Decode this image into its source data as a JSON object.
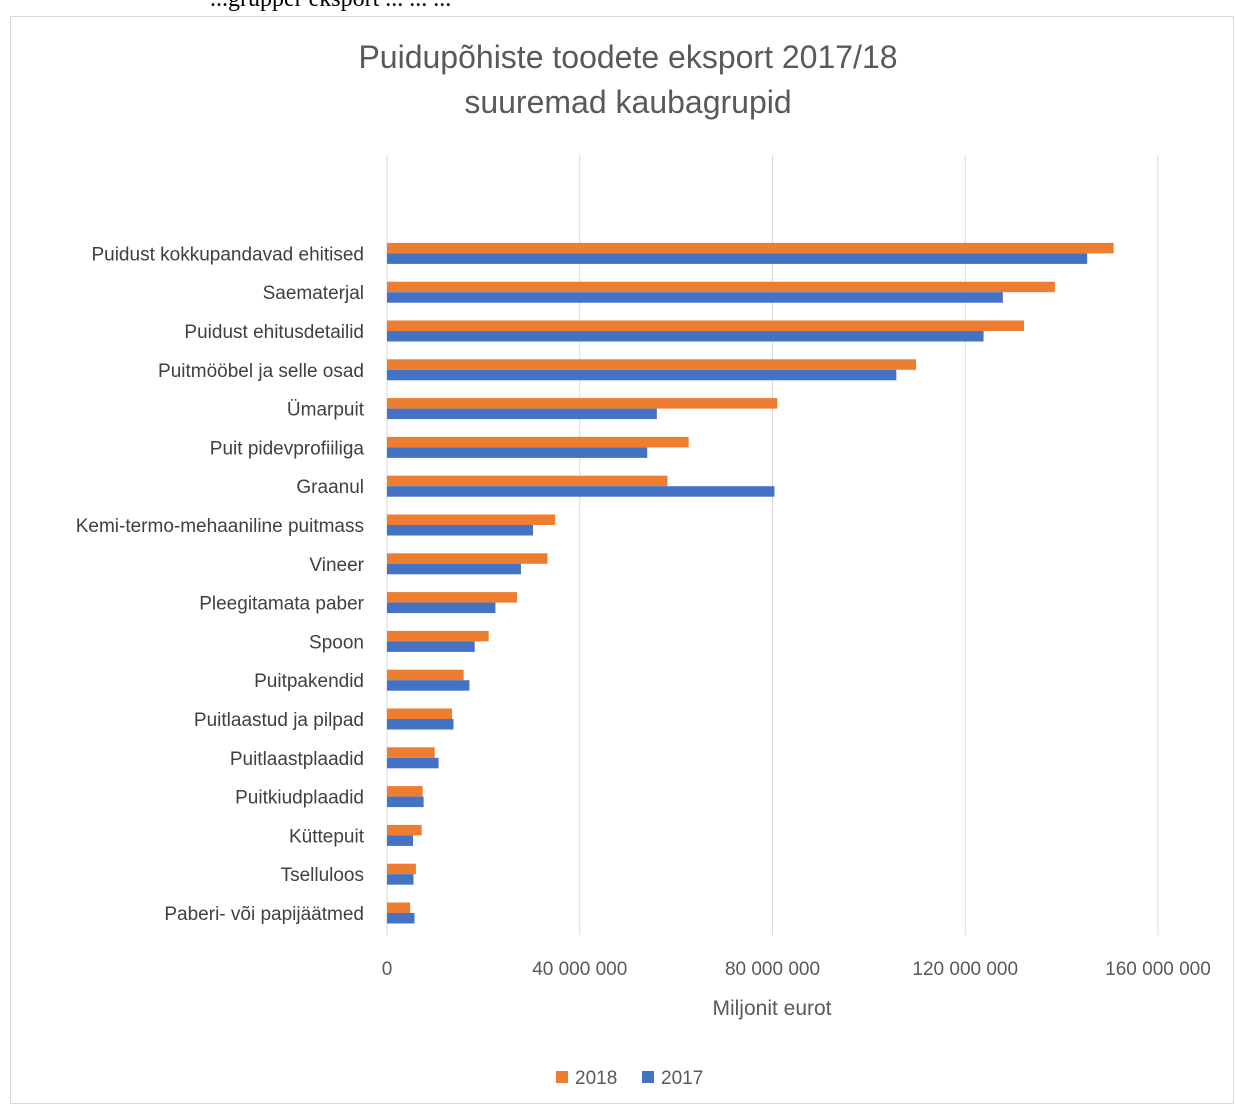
{
  "page_text": {
    "top_text": "...grupper eksport ... ... ..."
  },
  "chart_data": {
    "type": "bar",
    "orientation": "horizontal",
    "title": [
      "Puidupõhiste toodete eksport 2017/18",
      "suuremad kaubagrupid"
    ],
    "xlabel": "Miljonit eurot",
    "ylabel": "",
    "xlim": [
      0,
      160000000
    ],
    "xticks": [
      0,
      40000000,
      80000000,
      120000000,
      160000000
    ],
    "xtick_labels": [
      "0",
      "40 000 000",
      "80 000 000",
      "120 000 000",
      "160 000 000"
    ],
    "grid": true,
    "legend_position": "bottom",
    "categories": [
      "Puidust kokkupandavad ehitised",
      "Saematerjal",
      "Puidust ehitusdetailid",
      "Puitmööbel ja selle osad",
      "Ümarpuit",
      "Puit pidevprofiiliga",
      "Graanul",
      "Kemi-termo-mehaaniline puitmass",
      "Vineer",
      "Pleegitamata paber",
      "Spoon",
      "Puitpakendid",
      "Puitlaastud ja pilpad",
      "Puitlaastplaadid",
      "Puitkiudplaadid",
      "Küttepuit",
      "Tselluloos",
      "Paberi- või papijäätmed"
    ],
    "series": [
      {
        "name": "2018",
        "color": "#ed7d31",
        "values": [
          150800000,
          138600000,
          132200000,
          109800000,
          81000000,
          62600000,
          58200000,
          34900000,
          33300000,
          27000000,
          21100000,
          15900000,
          13500000,
          9900000,
          7400000,
          7200000,
          6000000,
          4800000
        ]
      },
      {
        "name": "2017",
        "color": "#4472c4",
        "values": [
          145300000,
          127800000,
          123800000,
          105700000,
          56000000,
          54000000,
          80400000,
          30300000,
          27800000,
          22500000,
          18200000,
          17100000,
          13800000,
          10700000,
          7600000,
          5400000,
          5500000,
          5700000
        ]
      }
    ]
  }
}
